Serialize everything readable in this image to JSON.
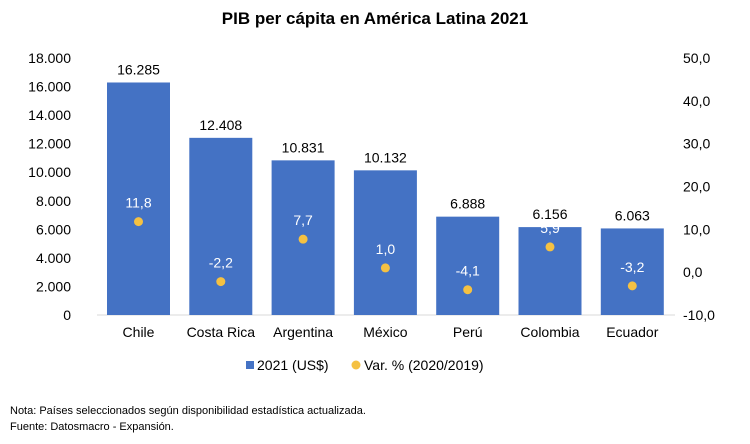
{
  "chart_data": {
    "type": "bar",
    "title": "PIB per cápita en América Latina 2021",
    "categories": [
      "Chile",
      "Costa Rica",
      "Argentina",
      "México",
      "Perú",
      "Colombia",
      "Ecuador"
    ],
    "series": [
      {
        "name": "2021 (US$)",
        "type": "bar",
        "axis": "left",
        "color": "#4472C4",
        "values": [
          16285,
          12408,
          10831,
          10132,
          6888,
          6156,
          6063
        ],
        "labels": [
          "16.285",
          "12.408",
          "10.831",
          "10.132",
          "6.888",
          "6.156",
          "6.063"
        ]
      },
      {
        "name": "Var. % (2020/2019)",
        "type": "scatter",
        "axis": "right",
        "color": "#F5C142",
        "values": [
          11.8,
          -2.2,
          7.7,
          1.0,
          -4.1,
          5.9,
          -3.2
        ],
        "labels": [
          "11,8",
          "-2,2",
          "7,7",
          "1,0",
          "-4,1",
          "5,9",
          "-3,2"
        ]
      }
    ],
    "left_axis": {
      "ylim": [
        0,
        18000
      ],
      "ticks": [
        "0",
        "2.000",
        "4.000",
        "6.000",
        "8.000",
        "10.000",
        "12.000",
        "14.000",
        "16.000",
        "18.000"
      ]
    },
    "right_axis": {
      "ylim": [
        -10,
        50
      ],
      "ticks": [
        "-10,0",
        "0,0",
        "10,0",
        "20,0",
        "30,0",
        "40,0",
        "50,0"
      ]
    },
    "grid": false,
    "legend": "bottom"
  },
  "notes": [
    "Nota: Países seleccionados según disponibilidad estadística actualizada.",
    "Fuente: Datosmacro - Expansión."
  ]
}
